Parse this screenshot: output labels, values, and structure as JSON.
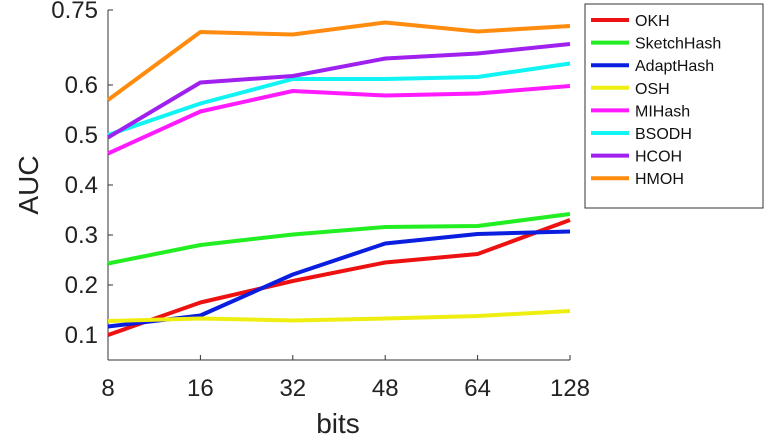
{
  "chart_data": {
    "type": "line",
    "title": "",
    "xlabel": "bits",
    "ylabel": "AUC",
    "categories": [
      "8",
      "16",
      "32",
      "48",
      "64",
      "128"
    ],
    "y_ticks": [
      0.1,
      0.2,
      0.3,
      0.4,
      0.5,
      0.6,
      0.75
    ],
    "y_tick_labels": [
      "0.1",
      "0.2",
      "0.3",
      "0.4",
      "0.5",
      "0.6",
      "0.75"
    ],
    "ylim": [
      0.05,
      0.75
    ],
    "grid": false,
    "legend_position": "top-right",
    "series": [
      {
        "name": "OKH",
        "color": "#ee1111",
        "values": [
          0.1,
          0.165,
          0.208,
          0.245,
          0.262,
          0.33
        ]
      },
      {
        "name": "SketchHash",
        "color": "#22ee22",
        "values": [
          0.243,
          0.28,
          0.301,
          0.316,
          0.318,
          0.342
        ]
      },
      {
        "name": "AdaptHash",
        "color": "#0a1ee0",
        "values": [
          0.117,
          0.139,
          0.221,
          0.283,
          0.302,
          0.307
        ]
      },
      {
        "name": "OSH",
        "color": "#eeee11",
        "values": [
          0.128,
          0.133,
          0.129,
          0.133,
          0.138,
          0.148
        ]
      },
      {
        "name": "MIHash",
        "color": "#ff1aff",
        "values": [
          0.463,
          0.547,
          0.588,
          0.579,
          0.583,
          0.598
        ]
      },
      {
        "name": "BSODH",
        "color": "#11f4f4",
        "values": [
          0.5,
          0.563,
          0.612,
          0.612,
          0.616,
          0.643
        ]
      },
      {
        "name": "HCOH",
        "color": "#9f20ef",
        "values": [
          0.495,
          0.605,
          0.618,
          0.653,
          0.663,
          0.682
        ]
      },
      {
        "name": "HMOH",
        "color": "#ff8c0f",
        "values": [
          0.57,
          0.706,
          0.701,
          0.725,
          0.707,
          0.718
        ]
      }
    ]
  }
}
